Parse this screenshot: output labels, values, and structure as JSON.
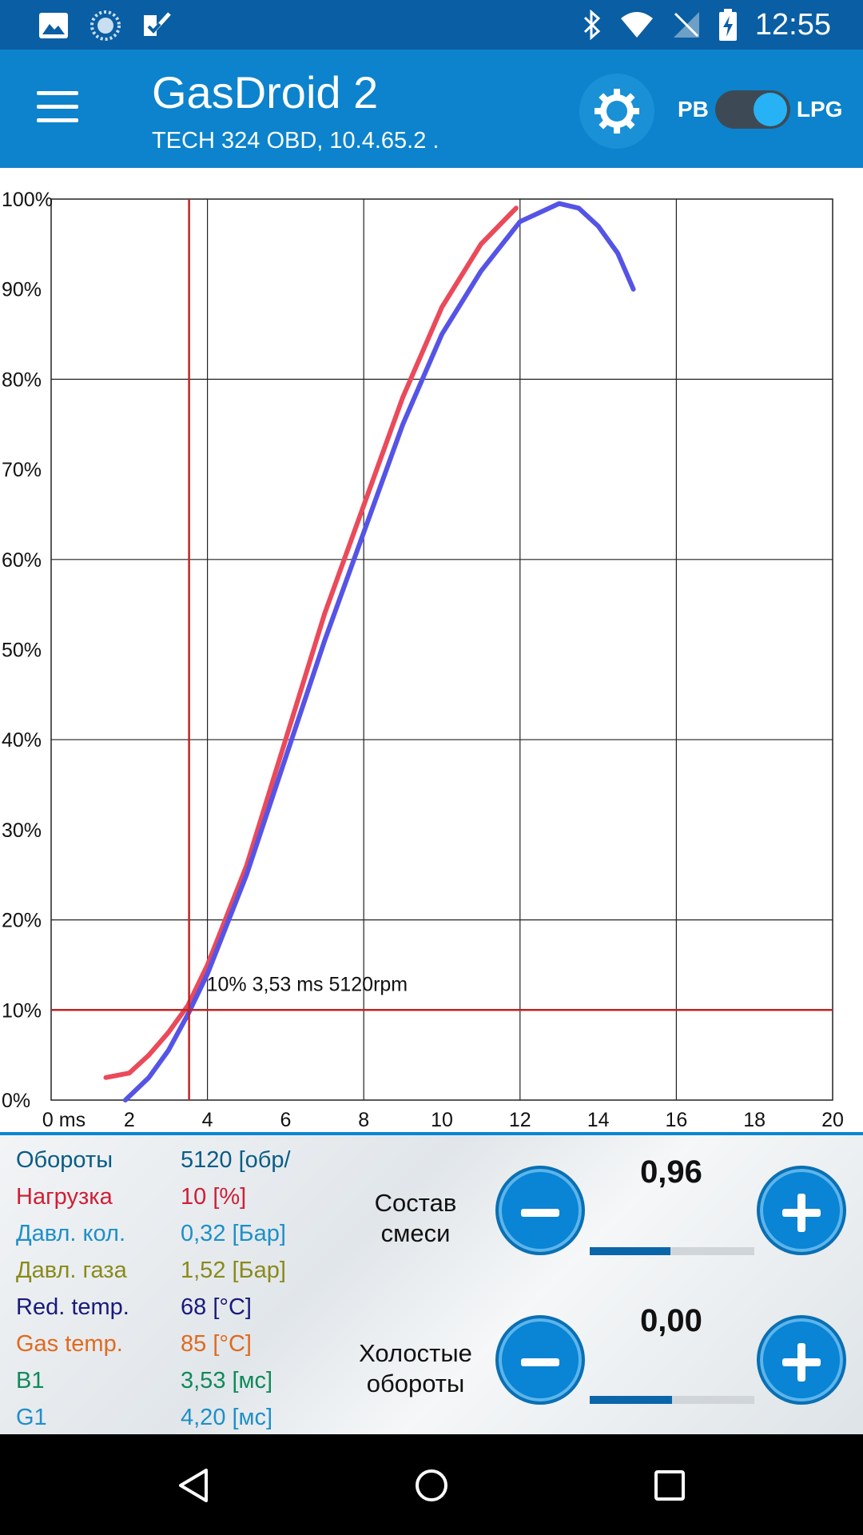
{
  "status_bar": {
    "time": "12:55",
    "left_icons": [
      "gallery-icon",
      "sync-icon",
      "check-app-icon"
    ],
    "right_icons": [
      "bluetooth-icon",
      "wifi-icon",
      "no-signal-icon",
      "battery-charging-icon"
    ]
  },
  "app_bar": {
    "title": "GasDroid 2",
    "subtitle": "TECH 324 OBD, 10.4.65.2 .",
    "toggle": {
      "left_label": "PB",
      "right_label": "LPG",
      "state": "LPG"
    }
  },
  "chart_data": {
    "type": "line",
    "x_ticks": [
      "0 ms",
      "2",
      "4",
      "6",
      "8",
      "10",
      "12",
      "14",
      "16",
      "18",
      "20"
    ],
    "y_ticks": [
      "0%",
      "10%",
      "20%",
      "30%",
      "40%",
      "50%",
      "60%",
      "70%",
      "80%",
      "90%",
      "100%"
    ],
    "xlim": [
      0,
      20
    ],
    "ylim": [
      0,
      100
    ],
    "grid": true,
    "series": [
      {
        "color": "#ea4a5a",
        "x": [
          1.4,
          2,
          2.5,
          3,
          3.5,
          4,
          5,
          6,
          7,
          8,
          9,
          10,
          11,
          11.9
        ],
        "y": [
          2.5,
          3,
          5,
          7.5,
          10.5,
          15,
          26,
          40,
          54,
          66,
          78,
          88,
          95,
          99
        ]
      },
      {
        "color": "#5554e6",
        "x": [
          1.9,
          2.5,
          3,
          3.5,
          4,
          5,
          6,
          7,
          8,
          9,
          10,
          11,
          12,
          13,
          13.5,
          14,
          14.5,
          14.9
        ],
        "y": [
          0,
          2.5,
          5.5,
          9.5,
          14,
          25,
          38,
          51,
          63,
          75,
          85,
          92,
          97.5,
          99.5,
          99,
          97,
          94,
          90
        ]
      }
    ],
    "cursor": {
      "x": 3.53,
      "y": 10,
      "color": "#c02424"
    },
    "annotation": "10%  3,53 ms  5120rpm"
  },
  "params": [
    {
      "name": "Обороты",
      "value": "5120 [обр/",
      "name_color": "#0a5c86",
      "value_color": "#0a5c86"
    },
    {
      "name": "Нагрузка",
      "value": "10 [%]",
      "name_color": "#cf1f36",
      "value_color": "#cf1f36"
    },
    {
      "name": "Давл. кол.",
      "value": "0,32 [Бар]",
      "name_color": "#1e8fc8",
      "value_color": "#1e8fc8"
    },
    {
      "name": "Давл. газа",
      "value": "1,52 [Бар]",
      "name_color": "#8a8a1a",
      "value_color": "#8a8a1a"
    },
    {
      "name": "Red. temp.",
      "value": "68 [°C]",
      "name_color": "#1a1a7a",
      "value_color": "#1a1a7a"
    },
    {
      "name": "Gas temp.",
      "value": "85 [°C]",
      "name_color": "#e06a1e",
      "value_color": "#e06a1e"
    },
    {
      "name": "B1",
      "value": "3,53 [мс]",
      "name_color": "#0f8a5a",
      "value_color": "#0f8a5a"
    },
    {
      "name": "G1",
      "value": "4,20 [мс]",
      "name_color": "#1e8fc8",
      "value_color": "#1e8fc8"
    }
  ],
  "controls": {
    "mixture": {
      "label_line1": "Состав",
      "label_line2": "смеси",
      "value": "0,96",
      "progress": 0.49
    },
    "idle": {
      "label_line1": "Холостые",
      "label_line2": "обороты",
      "value": "0,00",
      "progress": 0.5
    }
  },
  "nav_bar": {
    "icons": [
      "back-icon",
      "home-icon",
      "recents-icon"
    ]
  }
}
